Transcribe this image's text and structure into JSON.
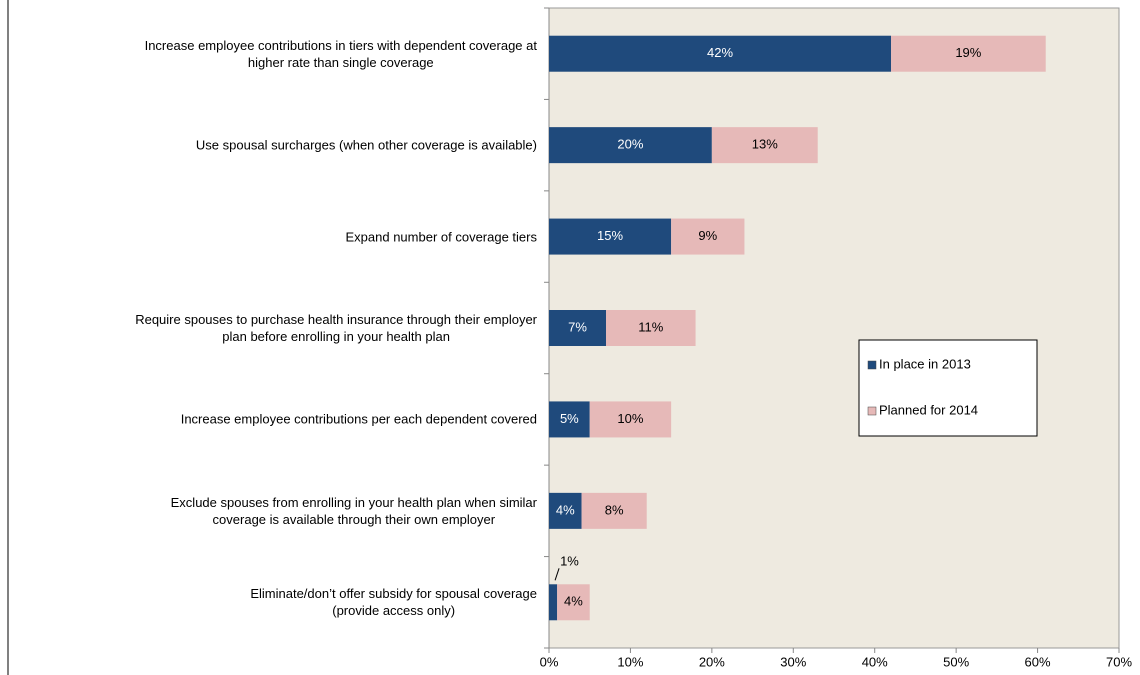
{
  "chart_data": {
    "type": "stacked_barh",
    "categories": [
      "Increase employee contributions in tiers with dependent coverage at\nhigher rate than single coverage",
      "Use spousal surcharges (when other coverage is available)",
      "Expand number of coverage tiers",
      "Require spouses to purchase health insurance through their employer\nplan before enrolling in your health plan",
      "Increase employee contributions per each dependent covered",
      "Exclude spouses from enrolling in your health plan when similar\ncoverage is available through their own employer",
      "Eliminate/don’t offer subsidy for spousal coverage\n(provide access only)"
    ],
    "series": [
      {
        "name": "In place in 2013",
        "color": "#1f4a7c",
        "values": [
          42,
          20,
          15,
          7,
          5,
          4,
          1
        ],
        "value_labels": [
          "42%",
          "20%",
          "15%",
          "7%",
          "5%",
          "4%",
          "1%"
        ]
      },
      {
        "name": "Planned for 2014",
        "color": "#e6b9b8",
        "values": [
          19,
          13,
          9,
          11,
          10,
          8,
          4
        ],
        "value_labels": [
          "19%",
          "13%",
          "9%",
          "11%",
          "10%",
          "8%",
          "4%"
        ]
      }
    ],
    "xlim": [
      0,
      70
    ],
    "xticks": [
      {
        "value": 0,
        "label": "0%"
      },
      {
        "value": 10,
        "label": "10%"
      },
      {
        "value": 20,
        "label": "20%"
      },
      {
        "value": 30,
        "label": "30%"
      },
      {
        "value": 40,
        "label": "40%"
      },
      {
        "value": 50,
        "label": "50%"
      },
      {
        "value": 60,
        "label": "60%"
      },
      {
        "value": 70,
        "label": "70%"
      }
    ],
    "legend": "right"
  }
}
